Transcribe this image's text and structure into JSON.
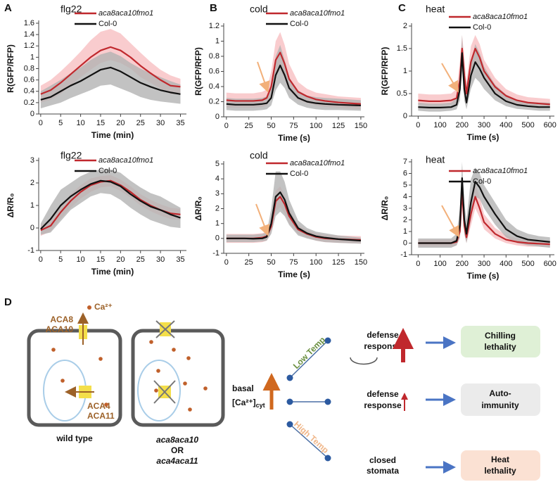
{
  "chart_data": [
    {
      "type": "line",
      "panel": "A",
      "title": "flg22",
      "x_label": "Time (min)",
      "y_label": "R(GFP/RFP)",
      "x": [
        0,
        2.5,
        5,
        7.5,
        10,
        12.5,
        15,
        17.5,
        20,
        22.5,
        25,
        27.5,
        30,
        32.5,
        35
      ],
      "xlim": [
        -0.5,
        36.5
      ],
      "xticks": [
        0,
        5,
        10,
        15,
        20,
        25,
        30,
        35
      ],
      "ylim": [
        0,
        1.6
      ],
      "yticks": [
        0,
        0.2,
        0.4,
        0.6,
        0.8,
        1,
        1.2,
        1.4,
        1.6
      ],
      "series": [
        {
          "name": "aca8aca10fmo1",
          "color": "#c0282d",
          "band_color": "#f8c3c6",
          "values": [
            0.35,
            0.42,
            0.55,
            0.7,
            0.85,
            1.0,
            1.12,
            1.18,
            1.12,
            1.0,
            0.85,
            0.72,
            0.6,
            0.5,
            0.48
          ],
          "lower": [
            0.2,
            0.25,
            0.35,
            0.5,
            0.65,
            0.78,
            0.9,
            0.95,
            0.9,
            0.8,
            0.65,
            0.55,
            0.45,
            0.35,
            0.35
          ],
          "upper": [
            0.5,
            0.6,
            0.75,
            0.92,
            1.1,
            1.3,
            1.45,
            1.5,
            1.42,
            1.25,
            1.08,
            0.92,
            0.78,
            0.68,
            0.62
          ]
        },
        {
          "name": "Col-0",
          "color": "#111111",
          "band_color": "#b3b3b3",
          "values": [
            0.25,
            0.3,
            0.4,
            0.5,
            0.58,
            0.68,
            0.78,
            0.82,
            0.75,
            0.65,
            0.55,
            0.48,
            0.42,
            0.38,
            0.35
          ],
          "lower": [
            0.1,
            0.15,
            0.2,
            0.28,
            0.35,
            0.42,
            0.5,
            0.52,
            0.45,
            0.38,
            0.3,
            0.25,
            0.22,
            0.2,
            0.18
          ],
          "upper": [
            0.4,
            0.5,
            0.6,
            0.72,
            0.82,
            0.95,
            1.05,
            1.1,
            1.02,
            0.9,
            0.8,
            0.72,
            0.65,
            0.58,
            0.52
          ]
        }
      ]
    },
    {
      "type": "line",
      "title": "flg22",
      "x_label": "Time (min)",
      "y_label": "ΔR/R₀",
      "x": [
        0,
        2.5,
        5,
        7.5,
        10,
        12.5,
        15,
        17.5,
        20,
        22.5,
        25,
        27.5,
        30,
        32.5,
        35
      ],
      "xlim": [
        -0.5,
        36.5
      ],
      "xticks": [
        0,
        5,
        10,
        15,
        20,
        25,
        30,
        35
      ],
      "ylim": [
        -1,
        3
      ],
      "yticks": [
        -1,
        0,
        1,
        2,
        3
      ],
      "series": [
        {
          "name": "aca8aca10fmo1",
          "color": "#c0282d",
          "band_color": "#f8c3c6",
          "values": [
            -0.1,
            0.1,
            0.7,
            1.2,
            1.6,
            1.9,
            2.05,
            2.1,
            1.9,
            1.6,
            1.25,
            1.0,
            0.8,
            0.65,
            0.6
          ],
          "lower": [
            -0.35,
            -0.15,
            0.4,
            0.9,
            1.3,
            1.6,
            1.8,
            1.85,
            1.65,
            1.35,
            1.0,
            0.75,
            0.55,
            0.4,
            0.35
          ],
          "upper": [
            0.15,
            0.35,
            1.0,
            1.5,
            1.9,
            2.2,
            2.3,
            2.35,
            2.15,
            1.85,
            1.5,
            1.25,
            1.05,
            0.9,
            0.85
          ]
        },
        {
          "name": "Col-0",
          "color": "#111111",
          "band_color": "#b3b3b3",
          "values": [
            -0.05,
            0.4,
            1.0,
            1.4,
            1.7,
            1.95,
            2.1,
            2.05,
            1.85,
            1.5,
            1.2,
            0.95,
            0.8,
            0.6,
            0.45
          ],
          "lower": [
            -0.3,
            -0.2,
            0.3,
            0.8,
            1.1,
            1.4,
            1.55,
            1.5,
            1.25,
            0.9,
            0.6,
            0.35,
            0.2,
            0.05,
            0.0
          ],
          "upper": [
            0.2,
            1.0,
            1.7,
            2.0,
            2.3,
            2.5,
            2.6,
            2.6,
            2.45,
            2.1,
            1.8,
            1.55,
            1.4,
            1.15,
            0.9
          ]
        }
      ]
    },
    {
      "type": "line",
      "panel": "B",
      "title": "cold",
      "x_label": "Time (s)",
      "y_label": "R(GFP/RFP)",
      "x": [
        0,
        10,
        20,
        30,
        40,
        45,
        50,
        55,
        60,
        65,
        70,
        80,
        90,
        100,
        110,
        125,
        150
      ],
      "xlim": [
        -3,
        154
      ],
      "xticks": [
        0,
        25,
        50,
        75,
        100,
        125,
        150
      ],
      "ylim": [
        0,
        1.2
      ],
      "yticks": [
        0,
        0.2,
        0.4,
        0.6,
        0.8,
        1,
        1.2
      ],
      "series": [
        {
          "name": "aca8aca10fmo1",
          "color": "#c0282d",
          "band_color": "#f8c3c6",
          "values": [
            0.22,
            0.21,
            0.21,
            0.21,
            0.22,
            0.25,
            0.4,
            0.75,
            0.85,
            0.7,
            0.5,
            0.33,
            0.27,
            0.23,
            0.21,
            0.19,
            0.17
          ],
          "lower": [
            0.12,
            0.12,
            0.12,
            0.12,
            0.13,
            0.15,
            0.25,
            0.55,
            0.62,
            0.5,
            0.35,
            0.22,
            0.18,
            0.15,
            0.13,
            0.12,
            0.1
          ],
          "upper": [
            0.32,
            0.31,
            0.31,
            0.31,
            0.33,
            0.36,
            0.6,
            1.0,
            1.12,
            0.95,
            0.7,
            0.46,
            0.37,
            0.32,
            0.3,
            0.27,
            0.25
          ]
        },
        {
          "name": "Col-0",
          "color": "#111111",
          "band_color": "#b3b3b3",
          "values": [
            0.17,
            0.16,
            0.16,
            0.16,
            0.17,
            0.18,
            0.25,
            0.55,
            0.68,
            0.55,
            0.38,
            0.25,
            0.2,
            0.18,
            0.17,
            0.16,
            0.15
          ],
          "lower": [
            0.09,
            0.08,
            0.08,
            0.08,
            0.09,
            0.1,
            0.15,
            0.35,
            0.45,
            0.38,
            0.25,
            0.16,
            0.12,
            0.1,
            0.09,
            0.09,
            0.08
          ],
          "upper": [
            0.25,
            0.24,
            0.24,
            0.24,
            0.25,
            0.27,
            0.4,
            0.8,
            0.95,
            0.75,
            0.52,
            0.35,
            0.28,
            0.26,
            0.25,
            0.24,
            0.22
          ]
        }
      ]
    },
    {
      "type": "line",
      "title": "cold",
      "x_label": "Time (s)",
      "y_label": "ΔR/R₀",
      "x": [
        0,
        10,
        20,
        30,
        40,
        45,
        50,
        55,
        60,
        65,
        70,
        80,
        90,
        100,
        110,
        125,
        150
      ],
      "xlim": [
        -3,
        154
      ],
      "xticks": [
        0,
        25,
        50,
        75,
        100,
        125,
        150
      ],
      "ylim": [
        -1,
        5
      ],
      "yticks": [
        -1,
        0,
        1,
        2,
        3,
        4,
        5
      ],
      "series": [
        {
          "name": "aca8aca10fmo1",
          "color": "#c0282d",
          "band_color": "#f8c3c6",
          "values": [
            0,
            0,
            0,
            0,
            0.05,
            0.15,
            0.8,
            2.5,
            2.8,
            2.3,
            1.5,
            0.6,
            0.3,
            0.1,
            0,
            -0.05,
            -0.1
          ],
          "lower": [
            -0.3,
            -0.3,
            -0.3,
            -0.3,
            -0.25,
            -0.15,
            0.4,
            1.8,
            2.1,
            1.7,
            1.0,
            0.3,
            0.05,
            -0.15,
            -0.25,
            -0.3,
            -0.35
          ],
          "upper": [
            0.3,
            0.3,
            0.3,
            0.3,
            0.35,
            0.45,
            1.3,
            3.2,
            3.5,
            2.9,
            2.0,
            0.9,
            0.55,
            0.35,
            0.25,
            0.2,
            0.15
          ]
        },
        {
          "name": "Col-0",
          "color": "#111111",
          "band_color": "#b3b3b3",
          "values": [
            0,
            0,
            0,
            -0.02,
            0,
            0.1,
            1.0,
            2.8,
            3.1,
            2.6,
            1.7,
            0.7,
            0.35,
            0.15,
            0.05,
            -0.05,
            -0.15
          ],
          "lower": [
            -0.25,
            -0.25,
            -0.25,
            -0.25,
            -0.2,
            -0.15,
            0.3,
            1.5,
            1.8,
            1.5,
            0.9,
            0.2,
            0,
            -0.15,
            -0.25,
            -0.3,
            -0.35
          ],
          "upper": [
            0.25,
            0.25,
            0.25,
            0.25,
            0.3,
            0.4,
            2.0,
            4.5,
            4.5,
            3.8,
            2.6,
            1.2,
            0.7,
            0.45,
            0.35,
            0.2,
            0.05
          ]
        }
      ]
    },
    {
      "type": "line",
      "panel": "C",
      "title": "heat",
      "x_label": "Time (s)",
      "y_label": "R(GFP/RFP)",
      "x": [
        0,
        50,
        100,
        150,
        175,
        190,
        200,
        210,
        220,
        240,
        260,
        280,
        300,
        350,
        400,
        450,
        500,
        550,
        600
      ],
      "xlim": [
        -30,
        620
      ],
      "xticks": [
        0,
        100,
        200,
        300,
        400,
        500,
        600
      ],
      "ylim": [
        0,
        2
      ],
      "yticks": [
        0,
        0.5,
        1,
        1.5,
        2
      ],
      "series": [
        {
          "name": "aca8aca10fmo1",
          "color": "#c0282d",
          "band_color": "#f8c3c6",
          "values": [
            0.35,
            0.33,
            0.33,
            0.35,
            0.4,
            0.8,
            1.5,
            0.9,
            0.5,
            1.2,
            1.5,
            1.3,
            1.0,
            0.65,
            0.45,
            0.35,
            0.3,
            0.28,
            0.26
          ],
          "lower": [
            0.25,
            0.23,
            0.23,
            0.25,
            0.28,
            0.5,
            1.2,
            0.6,
            0.35,
            0.9,
            1.2,
            1.05,
            0.8,
            0.5,
            0.35,
            0.26,
            0.22,
            0.2,
            0.18
          ],
          "upper": [
            0.5,
            0.48,
            0.48,
            0.5,
            0.6,
            1.2,
            1.8,
            1.3,
            0.75,
            1.55,
            1.8,
            1.6,
            1.25,
            0.85,
            0.6,
            0.48,
            0.42,
            0.4,
            0.38
          ]
        },
        {
          "name": "Col-0",
          "color": "#111111",
          "band_color": "#b3b3b3",
          "values": [
            0.2,
            0.19,
            0.19,
            0.2,
            0.25,
            0.6,
            1.4,
            0.6,
            0.3,
            0.9,
            1.2,
            1.05,
            0.85,
            0.5,
            0.33,
            0.25,
            0.22,
            0.2,
            0.2
          ],
          "lower": [
            0.12,
            0.1,
            0.1,
            0.12,
            0.15,
            0.35,
            1.0,
            0.35,
            0.15,
            0.6,
            0.85,
            0.75,
            0.6,
            0.35,
            0.22,
            0.16,
            0.14,
            0.12,
            0.12
          ],
          "upper": [
            0.3,
            0.28,
            0.28,
            0.3,
            0.4,
            0.9,
            1.8,
            0.9,
            0.5,
            1.2,
            1.6,
            1.4,
            1.1,
            0.7,
            0.48,
            0.36,
            0.32,
            0.3,
            0.3
          ]
        }
      ]
    },
    {
      "type": "line",
      "title": "heat",
      "x_label": "Time (s)",
      "y_label": "ΔR/R₀",
      "x": [
        0,
        50,
        100,
        150,
        175,
        190,
        200,
        210,
        220,
        240,
        260,
        280,
        300,
        350,
        400,
        450,
        500,
        550,
        600
      ],
      "xlim": [
        -30,
        620
      ],
      "xticks": [
        0,
        100,
        200,
        300,
        400,
        500,
        600
      ],
      "ylim": [
        -1,
        7
      ],
      "yticks": [
        -1,
        0,
        1,
        2,
        3,
        4,
        5,
        6,
        7
      ],
      "series": [
        {
          "name": "aca8aca10fmo1",
          "color": "#c0282d",
          "band_color": "#f8c3c6",
          "values": [
            0,
            0,
            0,
            0,
            0.1,
            1.0,
            4.5,
            1.5,
            0.5,
            2.5,
            4.0,
            3.0,
            1.8,
            0.8,
            0.3,
            0.1,
            0,
            -0.05,
            -0.1
          ],
          "lower": [
            -0.3,
            -0.3,
            -0.3,
            -0.3,
            -0.2,
            0.4,
            3.5,
            0.8,
            0,
            1.5,
            3.0,
            2.2,
            1.2,
            0.4,
            0,
            -0.2,
            -0.3,
            -0.3,
            -0.35
          ],
          "upper": [
            0.3,
            0.3,
            0.3,
            0.3,
            0.4,
            1.8,
            5.5,
            2.5,
            1.2,
            3.5,
            5.0,
            4.0,
            2.5,
            1.3,
            0.7,
            0.4,
            0.3,
            0.25,
            0.2
          ]
        },
        {
          "name": "Col-0",
          "color": "#111111",
          "band_color": "#b3b3b3",
          "values": [
            0,
            0,
            0,
            0,
            0.2,
            1.5,
            5.6,
            2.0,
            0.8,
            3.5,
            5.3,
            4.8,
            4.0,
            2.5,
            1.2,
            0.6,
            0.3,
            0.2,
            0.1
          ],
          "lower": [
            -0.4,
            -0.4,
            -0.4,
            -0.4,
            -0.2,
            0.5,
            4.0,
            0.8,
            0,
            2.0,
            4.0,
            3.8,
            3.0,
            1.6,
            0.5,
            0,
            -0.2,
            -0.3,
            -0.4
          ],
          "upper": [
            0.4,
            0.4,
            0.4,
            0.4,
            0.8,
            3.0,
            7,
            3.5,
            2,
            5.5,
            6.5,
            6,
            5,
            3.5,
            2.0,
            1.2,
            0.8,
            0.6,
            0.5
          ]
        }
      ]
    }
  ],
  "diagram": {
    "panel": "D",
    "ion": "Ca²⁺",
    "pm_channels": [
      "ACA8",
      "ACA10"
    ],
    "vacuole_channels": [
      "ACA4",
      "ACA11"
    ],
    "wt_label": "wild type",
    "mutant_label": [
      "aca8aca10",
      "OR",
      "aca4aca11"
    ],
    "basal": "basal",
    "basal_ca": "[Ca²⁺]",
    "basal_ca_sub": "cyt",
    "low_temp": "Low Temp",
    "high_temp": "High Temp",
    "responses": [
      [
        "defense",
        "response"
      ],
      [
        "defense",
        "response"
      ],
      [
        "closed",
        "stomata"
      ]
    ],
    "outcomes": [
      [
        "Chilling",
        "lethality"
      ],
      [
        "Auto-",
        "immunity"
      ],
      [
        "Heat",
        "lethality"
      ]
    ]
  }
}
